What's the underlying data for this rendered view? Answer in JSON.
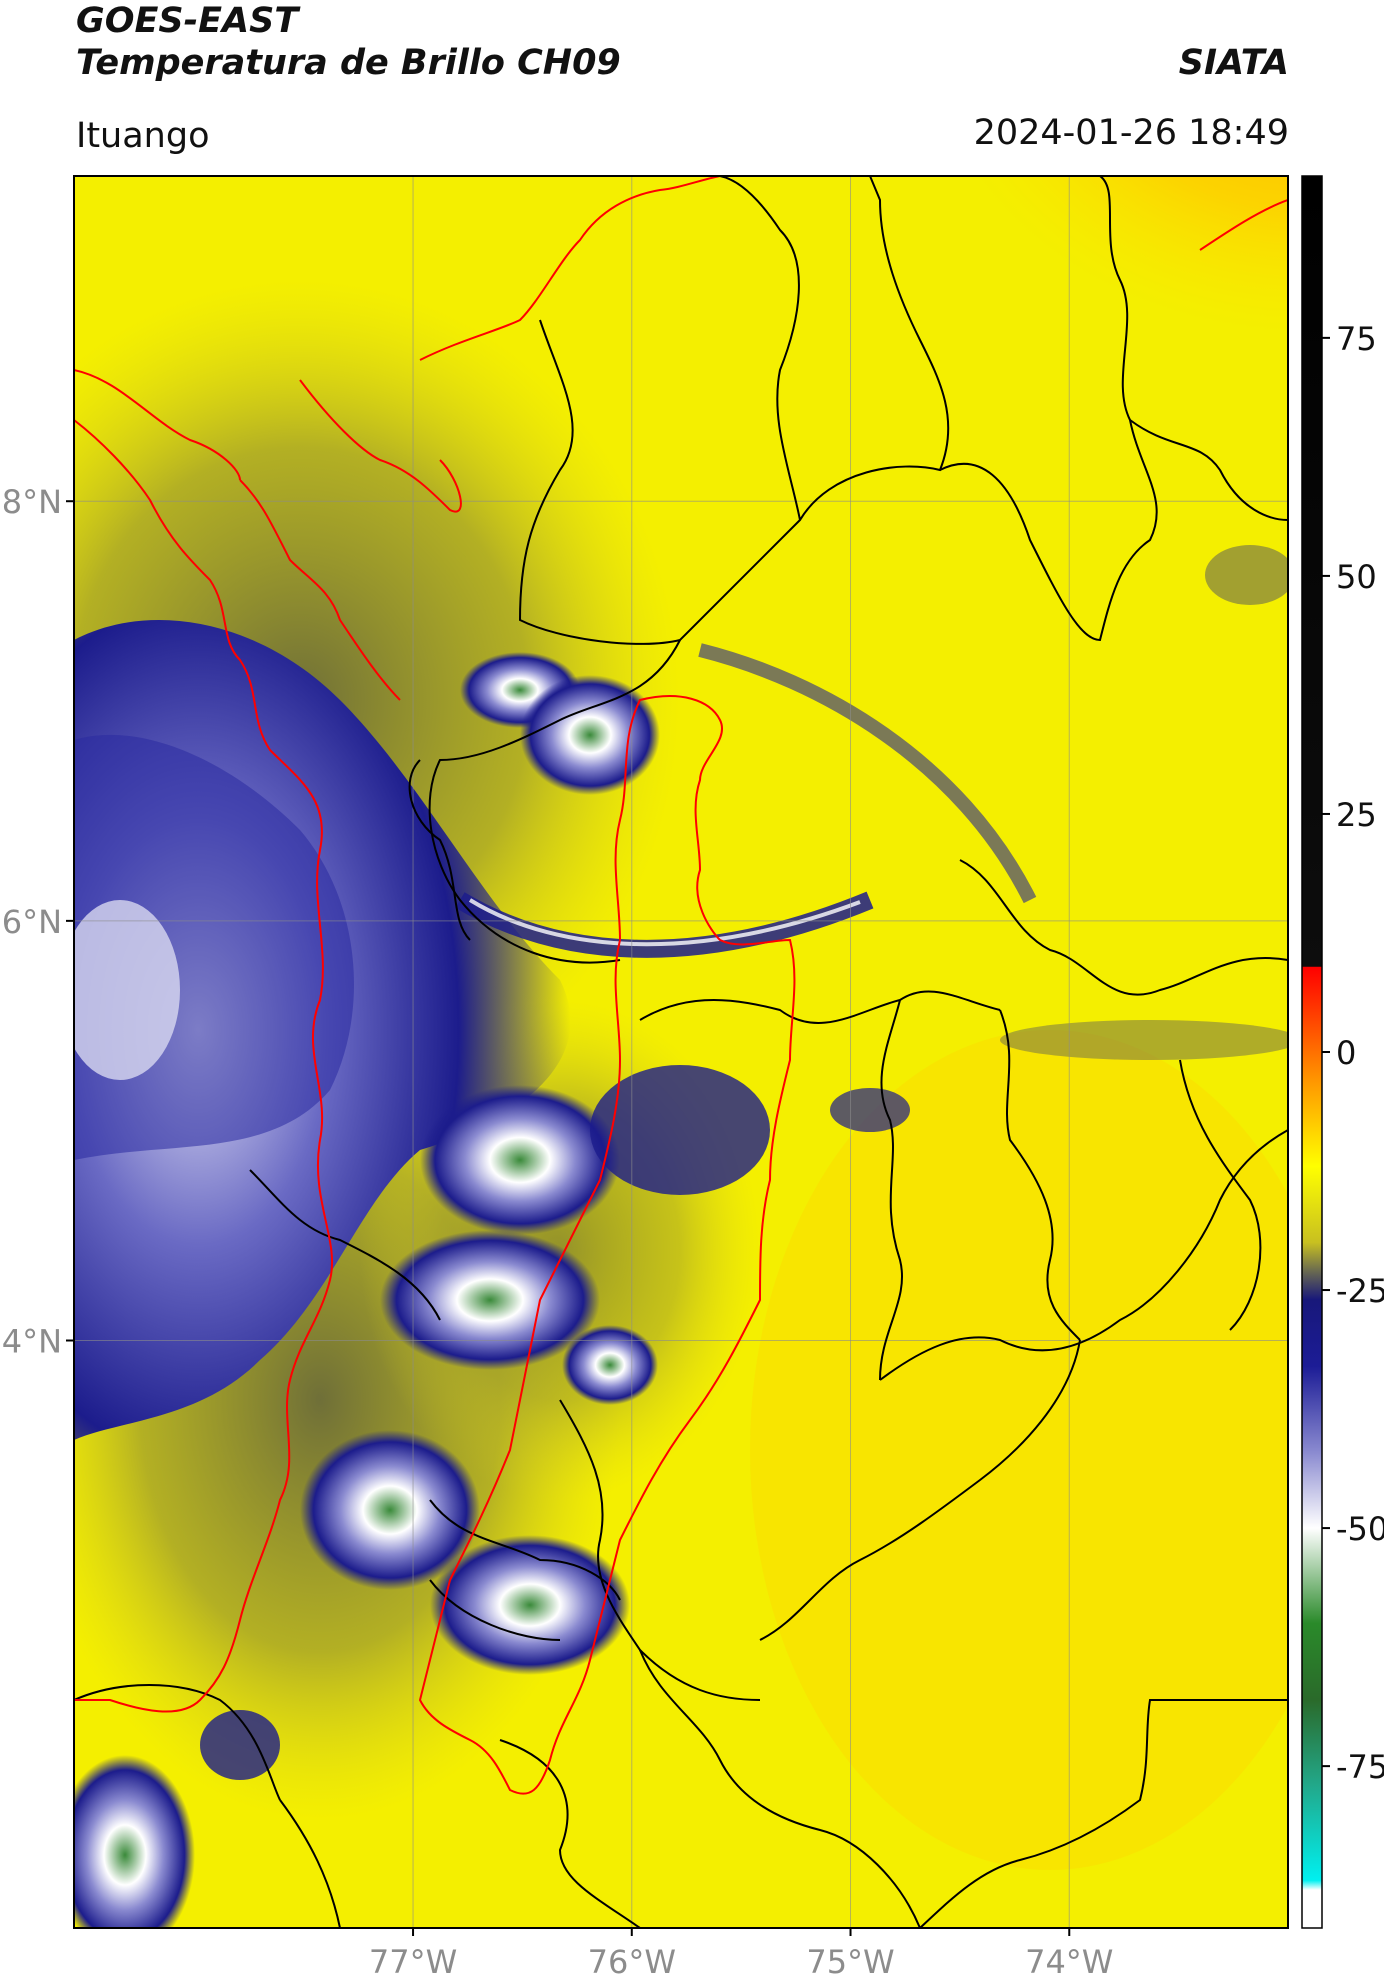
{
  "header": {
    "satellite": "GOES-EAST",
    "product": "Temperatura de Brillo CH09",
    "organization": "SIATA",
    "location": "Ituango",
    "datetime": "2024-01-26 18:49"
  },
  "map": {
    "lat_range": [
      1.2,
      9.55
    ],
    "lon_range": [
      -78.55,
      -73.0
    ],
    "lat_ticks": [
      {
        "value": 8,
        "label": "8°N"
      },
      {
        "value": 6,
        "label": "6°N"
      },
      {
        "value": 4,
        "label": "4°N"
      }
    ],
    "lon_ticks": [
      {
        "value": -77,
        "label": "77°W"
      },
      {
        "value": -76,
        "label": "76°W"
      },
      {
        "value": -75,
        "label": "75°W"
      },
      {
        "value": -74,
        "label": "74°W"
      }
    ],
    "colors": {
      "coastline": "#ff0000",
      "borders": "#000000",
      "gridline": "#8c8c8c"
    }
  },
  "colorbar": {
    "range": [
      -92,
      92
    ],
    "ticks": [
      {
        "value": 75,
        "label": "75"
      },
      {
        "value": 50,
        "label": "50"
      },
      {
        "value": 25,
        "label": "25"
      },
      {
        "value": 0,
        "label": "0"
      },
      {
        "value": -25,
        "label": "-25"
      },
      {
        "value": -50,
        "label": "-50"
      },
      {
        "value": -75,
        "label": "-75"
      }
    ],
    "stops": [
      {
        "value": 92,
        "color": "#000000"
      },
      {
        "value": 9,
        "color": "#0d0d0d"
      },
      {
        "value": 8.9,
        "color": "#ff0000"
      },
      {
        "value": 3,
        "color": "#ff4a00"
      },
      {
        "value": -3,
        "color": "#ff9600"
      },
      {
        "value": -12,
        "color": "#ffff00"
      },
      {
        "value": -20,
        "color": "#c8c020"
      },
      {
        "value": -23,
        "color": "#6a6a50"
      },
      {
        "value": -26,
        "color": "#18187a"
      },
      {
        "value": -33,
        "color": "#1c1c96"
      },
      {
        "value": -42,
        "color": "#8a8ad0"
      },
      {
        "value": -50,
        "color": "#ffffff"
      },
      {
        "value": -60,
        "color": "#2a8a2a"
      },
      {
        "value": -68,
        "color": "#2a6a2a"
      },
      {
        "value": -77,
        "color": "#22a88a"
      },
      {
        "value": -87,
        "color": "#00f0f0"
      },
      {
        "value": -88,
        "color": "#ffffff"
      },
      {
        "value": -92,
        "color": "#ffffff"
      }
    ]
  }
}
